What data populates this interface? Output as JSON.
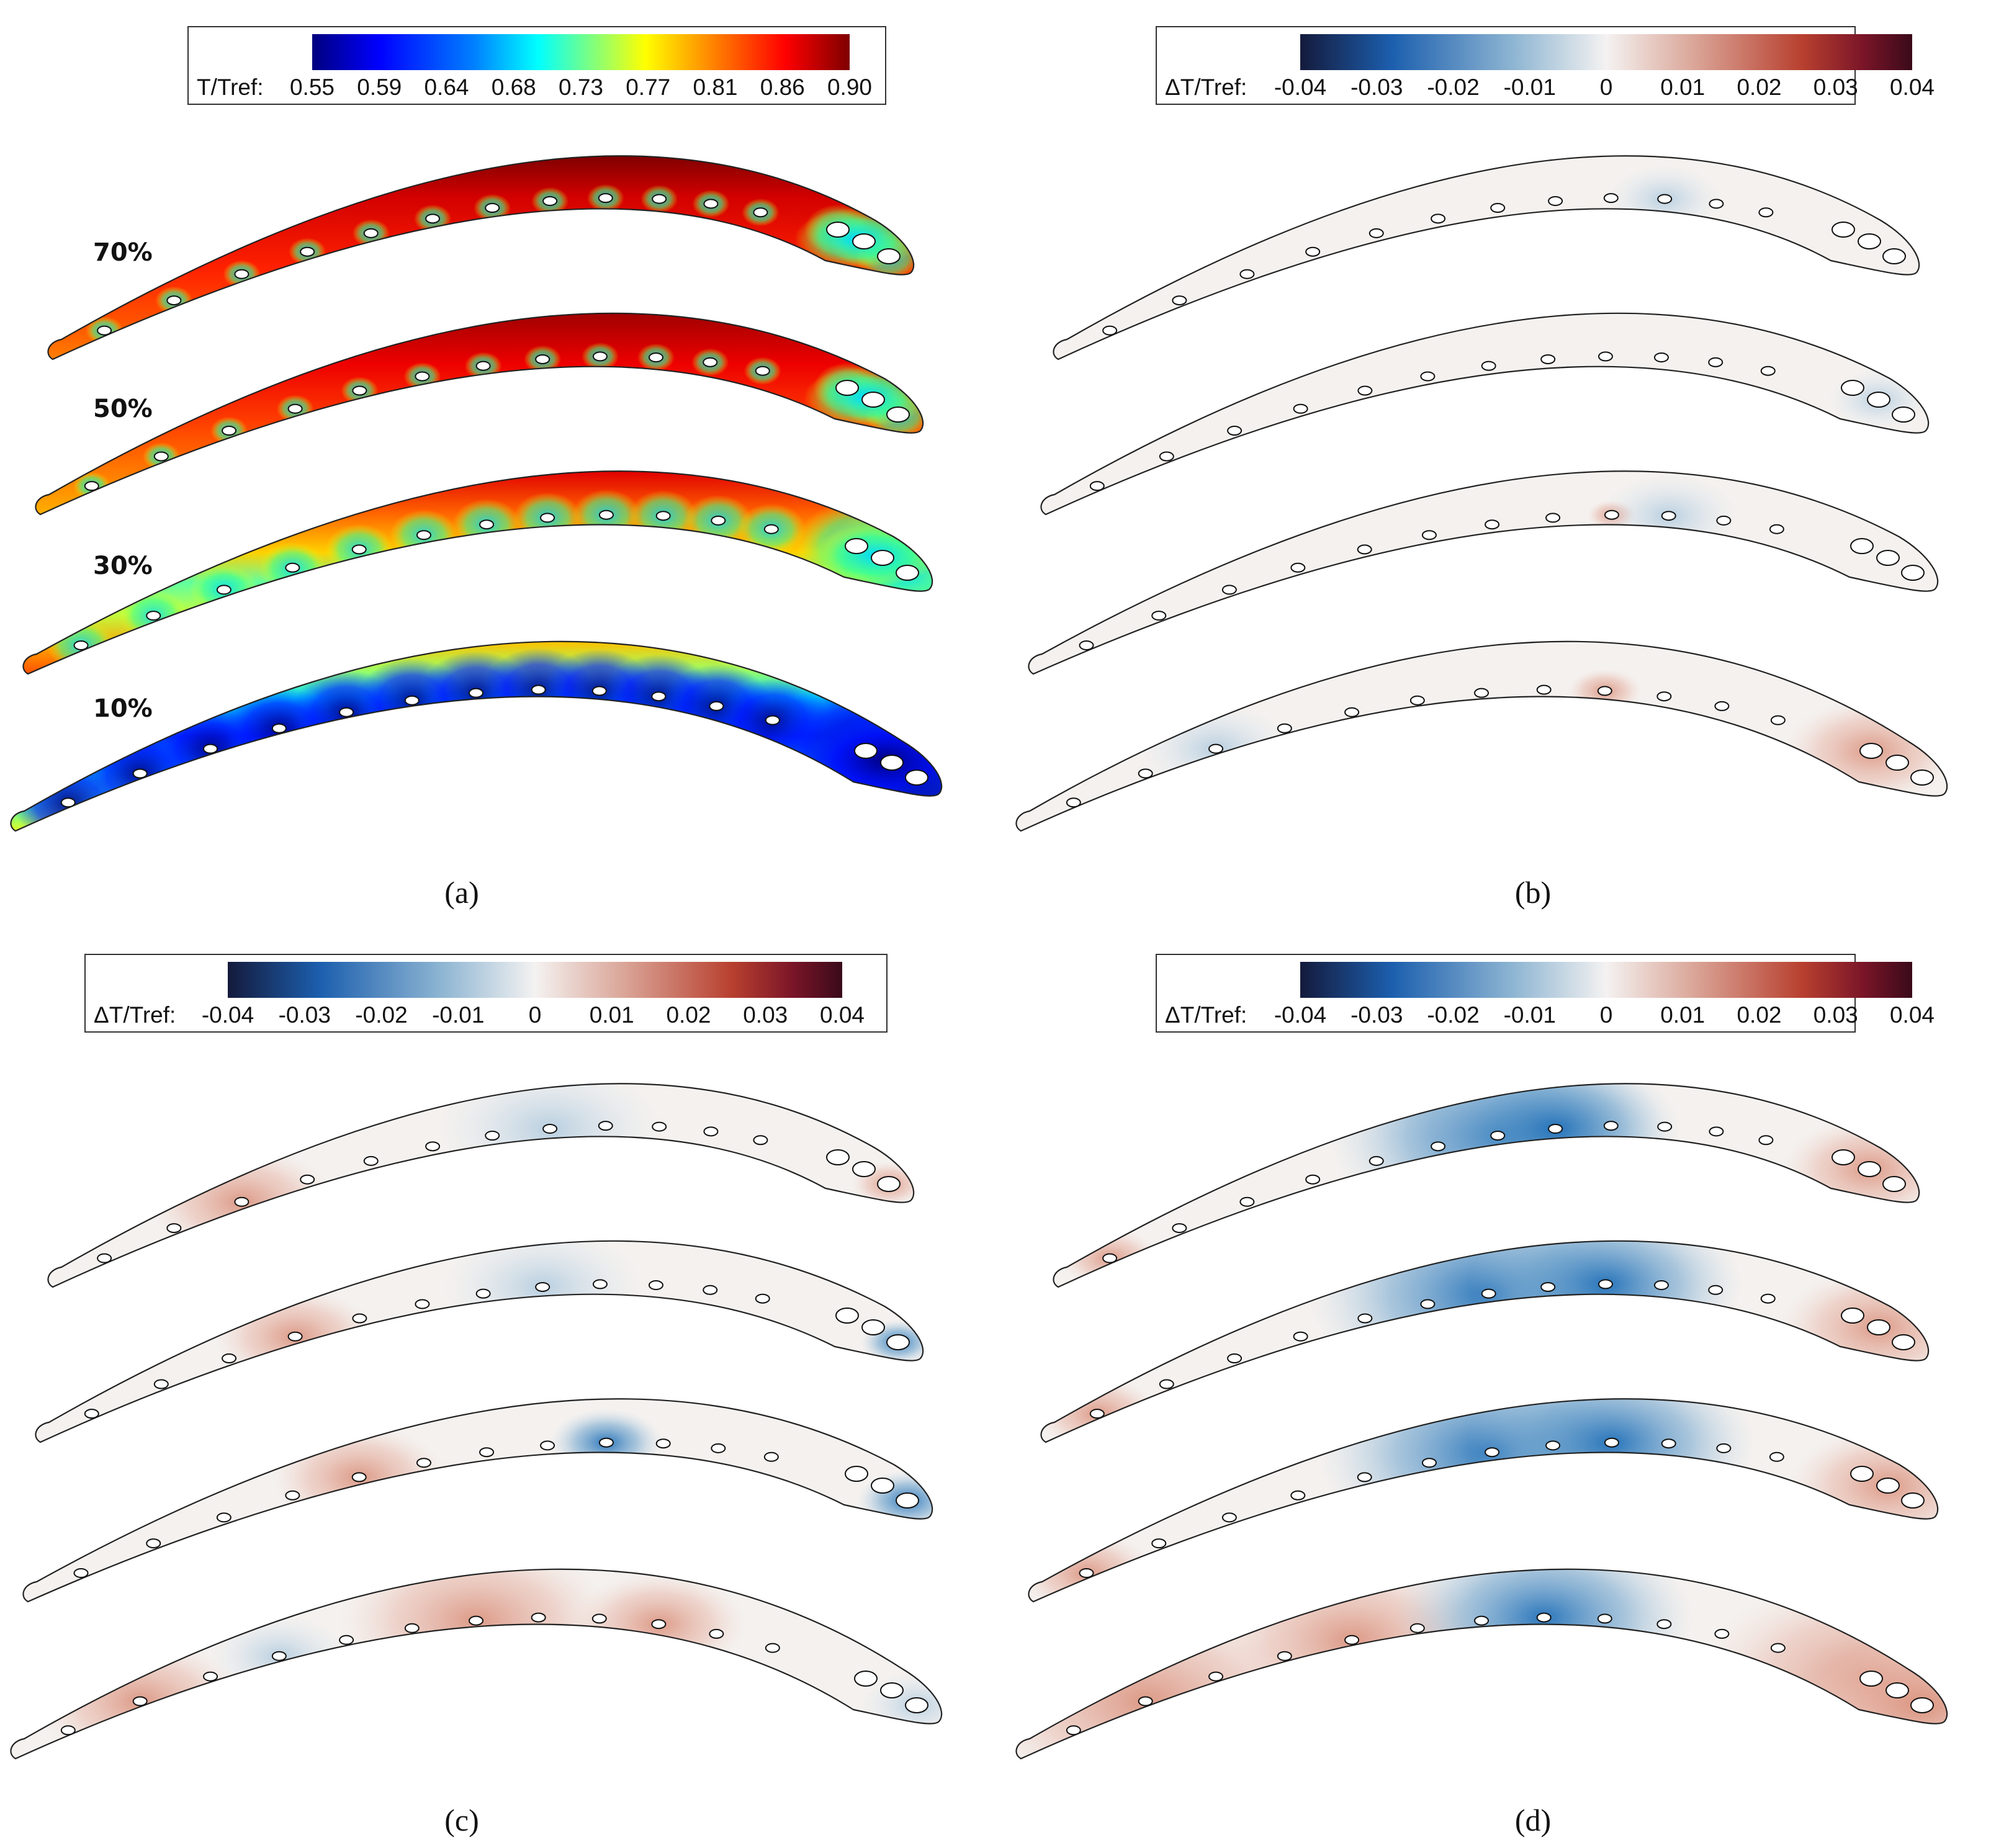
{
  "colors": {
    "jet": [
      "#00007f",
      "#0000ff",
      "#007fff",
      "#00ffff",
      "#7fff7f",
      "#ffff00",
      "#ff7f00",
      "#ff0000",
      "#7f0000"
    ],
    "diverging": [
      "#141a3c",
      "#1c5fae",
      "#8fb6d3",
      "#f4f2f1",
      "#d9a294",
      "#b8402f",
      "#7a1528",
      "#3a0a1a"
    ],
    "outline": "#222222"
  },
  "panels": [
    {
      "caption": "(a)",
      "colorbar": {
        "label": "T/Tref:",
        "scheme": "jet",
        "ticks": [
          "0.55",
          "0.59",
          "0.64",
          "0.68",
          "0.73",
          "0.77",
          "0.81",
          "0.86",
          "0.90"
        ]
      },
      "section_labels": [
        "70%",
        "50%",
        "30%",
        "10%"
      ]
    },
    {
      "caption": "(b)",
      "colorbar": {
        "label": "ΔT/Tref:",
        "scheme": "diverging",
        "ticks": [
          "-0.04",
          "-0.03",
          "-0.02",
          "-0.01",
          "0",
          "0.01",
          "0.02",
          "0.03",
          "0.04"
        ]
      }
    },
    {
      "caption": "(c)",
      "colorbar": {
        "label": "ΔT/Tref:",
        "scheme": "diverging",
        "ticks": [
          "-0.04",
          "-0.03",
          "-0.02",
          "-0.01",
          "0",
          "0.01",
          "0.02",
          "0.03",
          "0.04"
        ]
      }
    },
    {
      "caption": "(d)",
      "colorbar": {
        "label": "ΔT/Tref:",
        "scheme": "diverging",
        "ticks": [
          "-0.04",
          "-0.03",
          "-0.02",
          "-0.01",
          "0",
          "0.01",
          "0.02",
          "0.03",
          "0.04"
        ]
      }
    }
  ]
}
